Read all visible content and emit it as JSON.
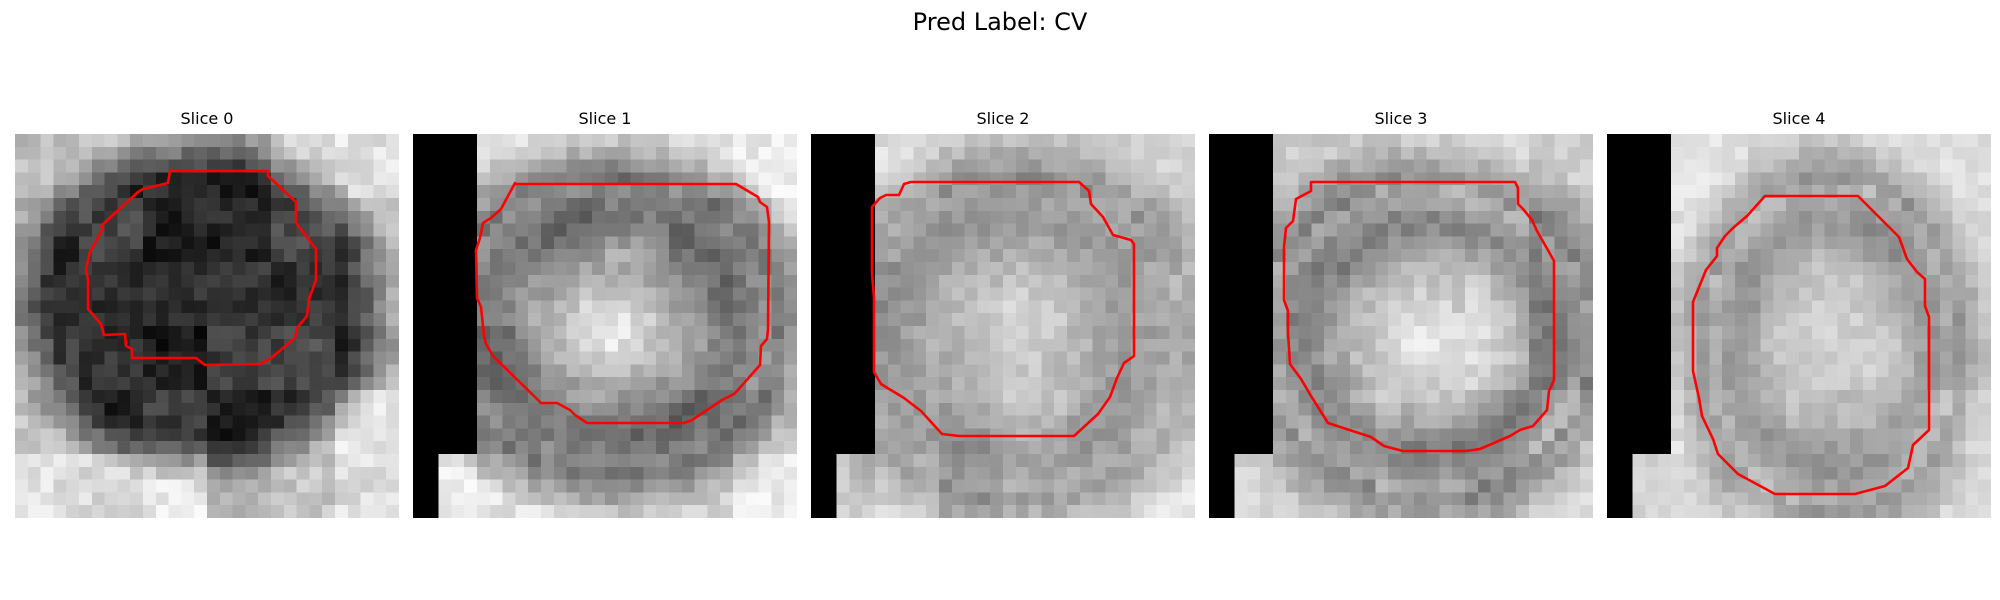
{
  "figure": {
    "title": "Pred Label: CV"
  },
  "panels": [
    {
      "title": "Slice 0",
      "contour_color": "#ff0000",
      "image_description": "grayscale patch with dark round nucleus"
    },
    {
      "title": "Slice 1",
      "contour_color": "#ff0000",
      "image_description": "grayscale patch with ring-shaped structure and bright center"
    },
    {
      "title": "Slice 2",
      "contour_color": "#ff0000",
      "image_description": "grayscale patch with faint round structure"
    },
    {
      "title": "Slice 3",
      "contour_color": "#ff0000",
      "image_description": "grayscale patch with ring-shaped structure"
    },
    {
      "title": "Slice 4",
      "contour_color": "#ff0000",
      "image_description": "grayscale patch with oval faint structure"
    }
  ]
}
